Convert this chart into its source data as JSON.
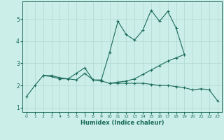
{
  "xlabel": "Humidex (Indice chaleur)",
  "bg_color": "#cceee8",
  "line_color": "#1a6b5a",
  "grid_color": "#b0d8d0",
  "x_values": [
    0,
    1,
    2,
    3,
    4,
    5,
    6,
    7,
    8,
    9,
    10,
    11,
    12,
    13,
    14,
    15,
    16,
    17,
    18,
    19,
    20,
    21,
    22,
    23
  ],
  "line1": [
    1.5,
    2.0,
    2.45,
    2.45,
    2.35,
    2.3,
    2.55,
    2.8,
    2.25,
    2.25,
    3.5,
    4.9,
    4.3,
    4.05,
    4.5,
    5.4,
    4.9,
    5.35,
    4.6,
    3.4,
    null,
    null,
    null,
    null
  ],
  "line2": [
    null,
    null,
    2.45,
    2.4,
    2.3,
    2.3,
    2.25,
    2.55,
    2.25,
    2.2,
    2.1,
    2.1,
    2.1,
    2.1,
    2.1,
    2.05,
    2.0,
    2.0,
    1.95,
    1.9,
    1.8,
    1.85,
    1.8,
    1.3
  ],
  "line3": [
    null,
    null,
    null,
    null,
    null,
    null,
    null,
    null,
    null,
    null,
    2.1,
    2.15,
    2.2,
    2.3,
    2.5,
    2.7,
    2.9,
    3.1,
    3.25,
    3.4,
    null,
    null,
    null,
    null
  ],
  "ylim": [
    0.8,
    5.8
  ],
  "xlim": [
    -0.5,
    23.5
  ],
  "yticks": [
    1,
    2,
    3,
    4,
    5
  ],
  "xticks": [
    0,
    1,
    2,
    3,
    4,
    5,
    6,
    7,
    8,
    9,
    10,
    11,
    12,
    13,
    14,
    15,
    16,
    17,
    18,
    19,
    20,
    21,
    22,
    23
  ]
}
